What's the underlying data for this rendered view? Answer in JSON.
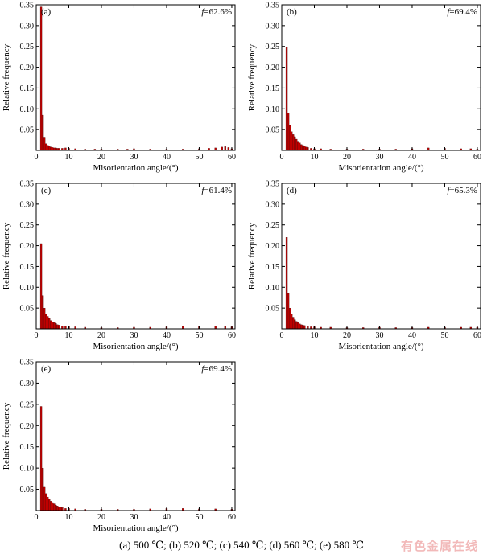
{
  "colors": {
    "bar": "#c00000",
    "bar_edge": "#3a0000",
    "axis": "#000000",
    "watermark": "#f2b9b9"
  },
  "caption": "(a)  500 ℃; (b) 520 ℃; (c) 540 ℃; (d) 560 ℃; (e) 580 ℃",
  "watermark": "有色金属在线",
  "chart_data": [
    {
      "type": "bar",
      "panel": "(a)",
      "annotation": "f=62.6%",
      "xlabel": "Misorientation angle/(°)",
      "ylabel": "Relative frequency",
      "xlim": [
        0,
        61
      ],
      "ylim": [
        0,
        0.35
      ],
      "xticks": [
        0,
        10,
        20,
        30,
        40,
        50,
        60
      ],
      "yticks": [
        0.05,
        0.1,
        0.15,
        0.2,
        0.25,
        0.3,
        0.35
      ],
      "bin_width": 0.5,
      "x": [
        1.5,
        2.0,
        2.5,
        3.0,
        3.5,
        4.0,
        4.5,
        5.0,
        5.5,
        6.0,
        6.5,
        7.0,
        8.0,
        9.0,
        10.0,
        12.0,
        15.0,
        18.0,
        20.0,
        25.0,
        28.0,
        30.0,
        35.0,
        40.0,
        45.0,
        50.0,
        53.0,
        55.0,
        57.0,
        58.0,
        59.0,
        60.0
      ],
      "values": [
        0.345,
        0.085,
        0.03,
        0.016,
        0.012,
        0.01,
        0.008,
        0.007,
        0.006,
        0.006,
        0.005,
        0.005,
        0.005,
        0.006,
        0.005,
        0.004,
        0.003,
        0.003,
        0.003,
        0.003,
        0.003,
        0.004,
        0.003,
        0.003,
        0.003,
        0.004,
        0.005,
        0.006,
        0.008,
        0.009,
        0.007,
        0.004
      ]
    },
    {
      "type": "bar",
      "panel": "(b)",
      "annotation": "f=69.4%",
      "xlabel": "Misorientation angle/(°)",
      "ylabel": "Relative frequency",
      "xlim": [
        0,
        61
      ],
      "ylim": [
        0,
        0.35
      ],
      "xticks": [
        0,
        10,
        20,
        30,
        40,
        50,
        60
      ],
      "yticks": [
        0.05,
        0.1,
        0.15,
        0.2,
        0.25,
        0.3,
        0.35
      ],
      "bin_width": 0.5,
      "x": [
        1.5,
        2.0,
        2.5,
        3.0,
        3.5,
        4.0,
        4.5,
        5.0,
        5.5,
        6.0,
        6.5,
        7.0,
        7.5,
        8.0,
        9.0,
        10.0,
        12.0,
        15.0,
        20.0,
        25.0,
        30.0,
        35.0,
        40.0,
        45.0,
        50.0,
        55.0,
        58.0,
        60.0
      ],
      "values": [
        0.248,
        0.09,
        0.06,
        0.045,
        0.038,
        0.033,
        0.027,
        0.022,
        0.018,
        0.014,
        0.012,
        0.01,
        0.008,
        0.007,
        0.005,
        0.004,
        0.004,
        0.003,
        0.003,
        0.003,
        0.003,
        0.003,
        0.004,
        0.006,
        0.005,
        0.004,
        0.004,
        0.003
      ]
    },
    {
      "type": "bar",
      "panel": "(c)",
      "annotation": "f=61.4%",
      "xlabel": "Misorientation angle/(°)",
      "ylabel": "Relative frequency",
      "xlim": [
        0,
        61
      ],
      "ylim": [
        0,
        0.35
      ],
      "xticks": [
        0,
        10,
        20,
        30,
        40,
        50,
        60
      ],
      "yticks": [
        0.05,
        0.1,
        0.15,
        0.2,
        0.25,
        0.3,
        0.35
      ],
      "bin_width": 0.5,
      "x": [
        1.5,
        2.0,
        2.5,
        3.0,
        3.5,
        4.0,
        4.5,
        5.0,
        5.5,
        6.0,
        6.5,
        7.0,
        8.0,
        9.0,
        10.0,
        12.0,
        15.0,
        20.0,
        25.0,
        30.0,
        35.0,
        40.0,
        45.0,
        50.0,
        55.0,
        58.0,
        60.0
      ],
      "values": [
        0.205,
        0.08,
        0.05,
        0.035,
        0.03,
        0.025,
        0.02,
        0.017,
        0.015,
        0.013,
        0.01,
        0.009,
        0.007,
        0.006,
        0.006,
        0.005,
        0.004,
        0.003,
        0.003,
        0.004,
        0.004,
        0.005,
        0.006,
        0.007,
        0.007,
        0.006,
        0.005
      ]
    },
    {
      "type": "bar",
      "panel": "(d)",
      "annotation": "f=65.3%",
      "xlabel": "Misorientation angle/(°)",
      "ylabel": "Relative frequency",
      "xlim": [
        0,
        61
      ],
      "ylim": [
        0,
        0.35
      ],
      "xticks": [
        0,
        10,
        20,
        30,
        40,
        50,
        60
      ],
      "yticks": [
        0.05,
        0.1,
        0.15,
        0.2,
        0.25,
        0.3,
        0.35
      ],
      "bin_width": 0.5,
      "x": [
        1.5,
        2.0,
        2.5,
        3.0,
        3.5,
        4.0,
        4.5,
        5.0,
        5.5,
        6.0,
        6.5,
        7.0,
        8.0,
        9.0,
        10.0,
        12.0,
        15.0,
        20.0,
        25.0,
        30.0,
        35.0,
        40.0,
        45.0,
        50.0,
        55.0,
        58.0,
        60.0
      ],
      "values": [
        0.22,
        0.085,
        0.05,
        0.035,
        0.028,
        0.022,
        0.018,
        0.015,
        0.012,
        0.01,
        0.009,
        0.008,
        0.006,
        0.005,
        0.005,
        0.004,
        0.004,
        0.003,
        0.003,
        0.004,
        0.003,
        0.003,
        0.004,
        0.004,
        0.004,
        0.004,
        0.004
      ]
    },
    {
      "type": "bar",
      "panel": "(e)",
      "annotation": "f=69.4%",
      "xlabel": "Misorientation angle/(°)",
      "ylabel": "Relative frequency",
      "xlim": [
        0,
        61
      ],
      "ylim": [
        0,
        0.35
      ],
      "xticks": [
        0,
        10,
        20,
        30,
        40,
        50,
        60
      ],
      "yticks": [
        0.05,
        0.1,
        0.15,
        0.2,
        0.25,
        0.3,
        0.35
      ],
      "bin_width": 0.5,
      "x": [
        1.5,
        2.0,
        2.5,
        3.0,
        3.5,
        4.0,
        4.5,
        5.0,
        5.5,
        6.0,
        6.5,
        7.0,
        7.5,
        8.0,
        9.0,
        10.0,
        12.0,
        15.0,
        20.0,
        25.0,
        30.0,
        35.0,
        40.0,
        45.0,
        50.0,
        55.0,
        60.0
      ],
      "values": [
        0.245,
        0.1,
        0.055,
        0.04,
        0.032,
        0.027,
        0.022,
        0.019,
        0.016,
        0.013,
        0.011,
        0.009,
        0.008,
        0.007,
        0.005,
        0.005,
        0.004,
        0.003,
        0.003,
        0.003,
        0.003,
        0.004,
        0.005,
        0.005,
        0.004,
        0.004,
        0.003
      ]
    }
  ]
}
